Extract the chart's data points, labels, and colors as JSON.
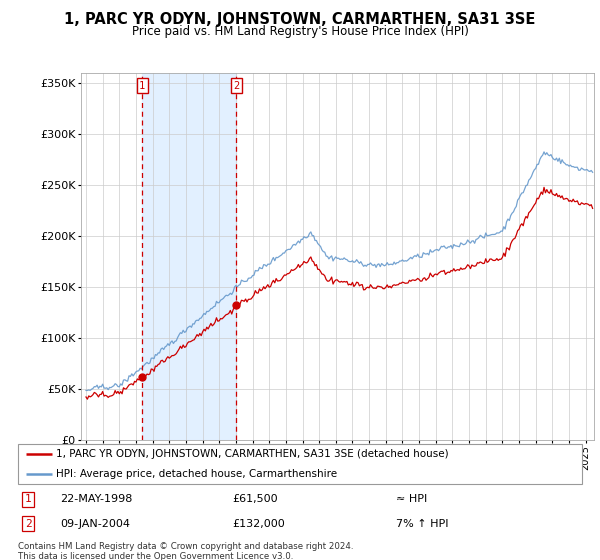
{
  "title": "1, PARC YR ODYN, JOHNSTOWN, CARMARTHEN, SA31 3SE",
  "subtitle": "Price paid vs. HM Land Registry's House Price Index (HPI)",
  "legend_line1": "1, PARC YR ODYN, JOHNSTOWN, CARMARTHEN, SA31 3SE (detached house)",
  "legend_line2": "HPI: Average price, detached house, Carmarthenshire",
  "transaction1_date": "22-MAY-1998",
  "transaction1_price": "£61,500",
  "transaction1_hpi": "≈ HPI",
  "transaction2_date": "09-JAN-2004",
  "transaction2_price": "£132,000",
  "transaction2_hpi": "7% ↑ HPI",
  "footer": "Contains HM Land Registry data © Crown copyright and database right 2024.\nThis data is licensed under the Open Government Licence v3.0.",
  "red_color": "#cc0000",
  "blue_color": "#6699cc",
  "shade_color": "#ddeeff",
  "box_color": "#cc0000",
  "ylim": [
    0,
    360000
  ],
  "yticks": [
    0,
    50000,
    100000,
    150000,
    200000,
    250000,
    300000,
    350000
  ],
  "ytick_labels": [
    "£0",
    "£50K",
    "£100K",
    "£150K",
    "£200K",
    "£250K",
    "£300K",
    "£350K"
  ],
  "xstart": 1994.7,
  "xend": 2025.5,
  "t1_year": 1998.38,
  "t1_price": 61500,
  "t2_year": 2004.03,
  "t2_price": 132000,
  "hpi_seed": 42,
  "grid_color": "#cccccc",
  "spine_color": "#aaaaaa"
}
